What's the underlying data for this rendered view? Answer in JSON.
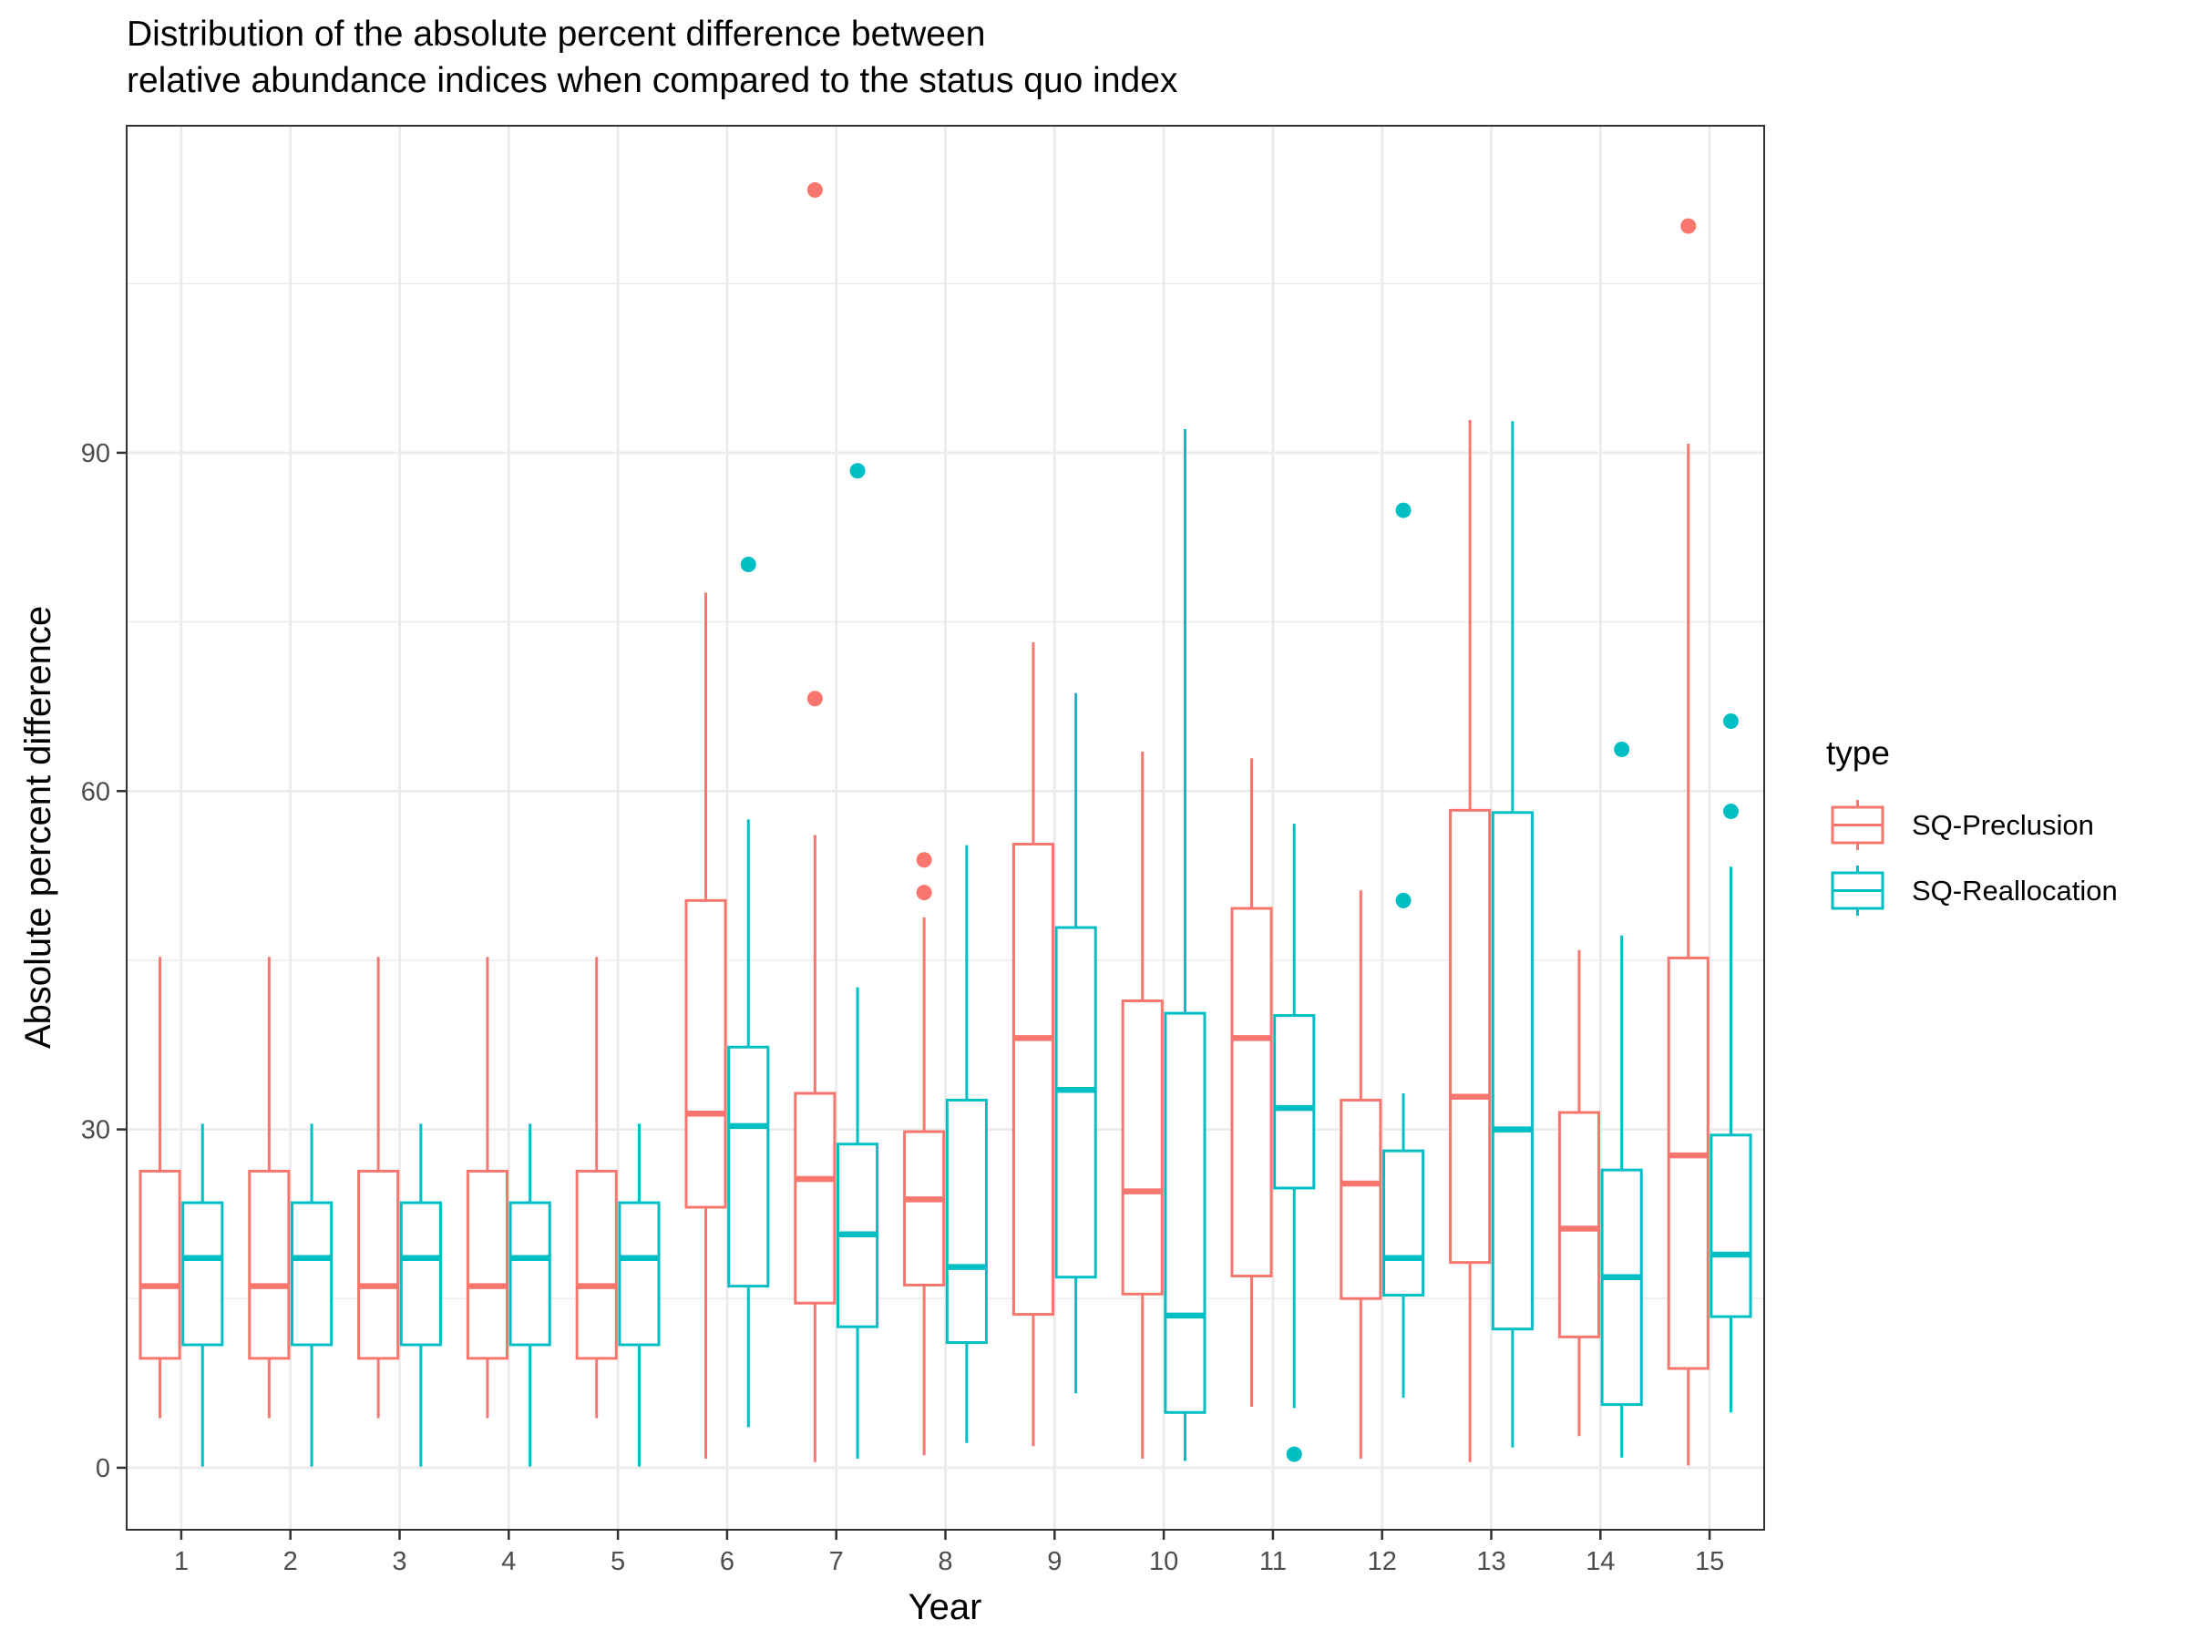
{
  "chart_data": {
    "type": "boxplot",
    "title": "Distribution of the absolute percent difference between",
    "subtitle": "relative abundance indices when compared to the status quo index",
    "xlabel": "Year",
    "ylabel": "Absolute percent difference",
    "categories": [
      "1",
      "2",
      "3",
      "4",
      "5",
      "6",
      "7",
      "8",
      "9",
      "10",
      "11",
      "12",
      "13",
      "14",
      "15"
    ],
    "yticks": [
      0,
      30,
      60,
      90
    ],
    "ylim": [
      -5.5,
      119
    ],
    "grid": true,
    "legend": {
      "title": "type",
      "position": "right"
    },
    "series": [
      {
        "name": "SQ-Preclusion",
        "color": "#F8766D",
        "boxes": [
          {
            "whisker_low": 4.4,
            "q1": 9.7,
            "median": 16.1,
            "q3": 26.3,
            "whisker_high": 45.3,
            "outliers": []
          },
          {
            "whisker_low": 4.4,
            "q1": 9.7,
            "median": 16.1,
            "q3": 26.3,
            "whisker_high": 45.3,
            "outliers": []
          },
          {
            "whisker_low": 4.4,
            "q1": 9.7,
            "median": 16.1,
            "q3": 26.3,
            "whisker_high": 45.3,
            "outliers": []
          },
          {
            "whisker_low": 4.4,
            "q1": 9.7,
            "median": 16.1,
            "q3": 26.3,
            "whisker_high": 45.3,
            "outliers": []
          },
          {
            "whisker_low": 4.4,
            "q1": 9.7,
            "median": 16.1,
            "q3": 26.3,
            "whisker_high": 45.3,
            "outliers": []
          },
          {
            "whisker_low": 0.8,
            "q1": 23.1,
            "median": 31.4,
            "q3": 50.3,
            "whisker_high": 77.6,
            "outliers": []
          },
          {
            "whisker_low": 0.5,
            "q1": 14.6,
            "median": 25.6,
            "q3": 33.2,
            "whisker_high": 56.1,
            "outliers": [
              68.2,
              113.3
            ]
          },
          {
            "whisker_low": 1.1,
            "q1": 16.2,
            "median": 23.8,
            "q3": 29.8,
            "whisker_high": 48.8,
            "outliers": [
              51.0,
              53.9
            ]
          },
          {
            "whisker_low": 1.9,
            "q1": 13.6,
            "median": 38.1,
            "q3": 55.3,
            "whisker_high": 73.2,
            "outliers": []
          },
          {
            "whisker_low": 0.8,
            "q1": 15.4,
            "median": 24.5,
            "q3": 41.4,
            "whisker_high": 63.5,
            "outliers": []
          },
          {
            "whisker_low": 5.4,
            "q1": 17.0,
            "median": 38.1,
            "q3": 49.6,
            "whisker_high": 62.9,
            "outliers": []
          },
          {
            "whisker_low": 0.8,
            "q1": 15.0,
            "median": 25.2,
            "q3": 32.6,
            "whisker_high": 51.2,
            "outliers": []
          },
          {
            "whisker_low": 0.5,
            "q1": 18.2,
            "median": 32.9,
            "q3": 58.3,
            "whisker_high": 92.9,
            "outliers": []
          },
          {
            "whisker_low": 2.8,
            "q1": 11.6,
            "median": 21.2,
            "q3": 31.5,
            "whisker_high": 45.9,
            "outliers": []
          },
          {
            "whisker_low": 0.2,
            "q1": 8.8,
            "median": 27.7,
            "q3": 45.2,
            "whisker_high": 90.8,
            "outliers": [
              110.1
            ]
          }
        ]
      },
      {
        "name": "SQ-Reallocation",
        "color": "#00BFC4",
        "boxes": [
          {
            "whisker_low": 0.1,
            "q1": 10.9,
            "median": 18.6,
            "q3": 23.5,
            "whisker_high": 30.5,
            "outliers": []
          },
          {
            "whisker_low": 0.1,
            "q1": 10.9,
            "median": 18.6,
            "q3": 23.5,
            "whisker_high": 30.5,
            "outliers": []
          },
          {
            "whisker_low": 0.1,
            "q1": 10.9,
            "median": 18.6,
            "q3": 23.5,
            "whisker_high": 30.5,
            "outliers": []
          },
          {
            "whisker_low": 0.1,
            "q1": 10.9,
            "median": 18.6,
            "q3": 23.5,
            "whisker_high": 30.5,
            "outliers": []
          },
          {
            "whisker_low": 0.1,
            "q1": 10.9,
            "median": 18.6,
            "q3": 23.5,
            "whisker_high": 30.5,
            "outliers": []
          },
          {
            "whisker_low": 3.6,
            "q1": 16.1,
            "median": 30.3,
            "q3": 37.3,
            "whisker_high": 57.5,
            "outliers": [
              80.1
            ]
          },
          {
            "whisker_low": 0.8,
            "q1": 12.5,
            "median": 20.7,
            "q3": 28.7,
            "whisker_high": 42.6,
            "outliers": [
              88.4
            ]
          },
          {
            "whisker_low": 2.2,
            "q1": 11.1,
            "median": 17.8,
            "q3": 32.6,
            "whisker_high": 55.2,
            "outliers": []
          },
          {
            "whisker_low": 6.6,
            "q1": 16.9,
            "median": 33.5,
            "q3": 47.9,
            "whisker_high": 68.7,
            "outliers": []
          },
          {
            "whisker_low": 0.6,
            "q1": 4.9,
            "median": 13.5,
            "q3": 40.3,
            "whisker_high": 92.1,
            "outliers": []
          },
          {
            "whisker_low": 5.3,
            "q1": 24.8,
            "median": 31.9,
            "q3": 40.1,
            "whisker_high": 57.1,
            "outliers": [
              1.2
            ]
          },
          {
            "whisker_low": 6.2,
            "q1": 15.3,
            "median": 18.6,
            "q3": 28.1,
            "whisker_high": 33.2,
            "outliers": [
              50.3,
              84.9
            ]
          },
          {
            "whisker_low": 1.8,
            "q1": 12.3,
            "median": 30.0,
            "q3": 58.1,
            "whisker_high": 92.8,
            "outliers": []
          },
          {
            "whisker_low": 0.9,
            "q1": 5.6,
            "median": 16.9,
            "q3": 26.4,
            "whisker_high": 47.2,
            "outliers": [
              63.7
            ]
          },
          {
            "whisker_low": 4.9,
            "q1": 13.4,
            "median": 18.9,
            "q3": 29.5,
            "whisker_high": 53.3,
            "outliers": [
              58.2,
              66.2
            ]
          }
        ]
      }
    ]
  }
}
